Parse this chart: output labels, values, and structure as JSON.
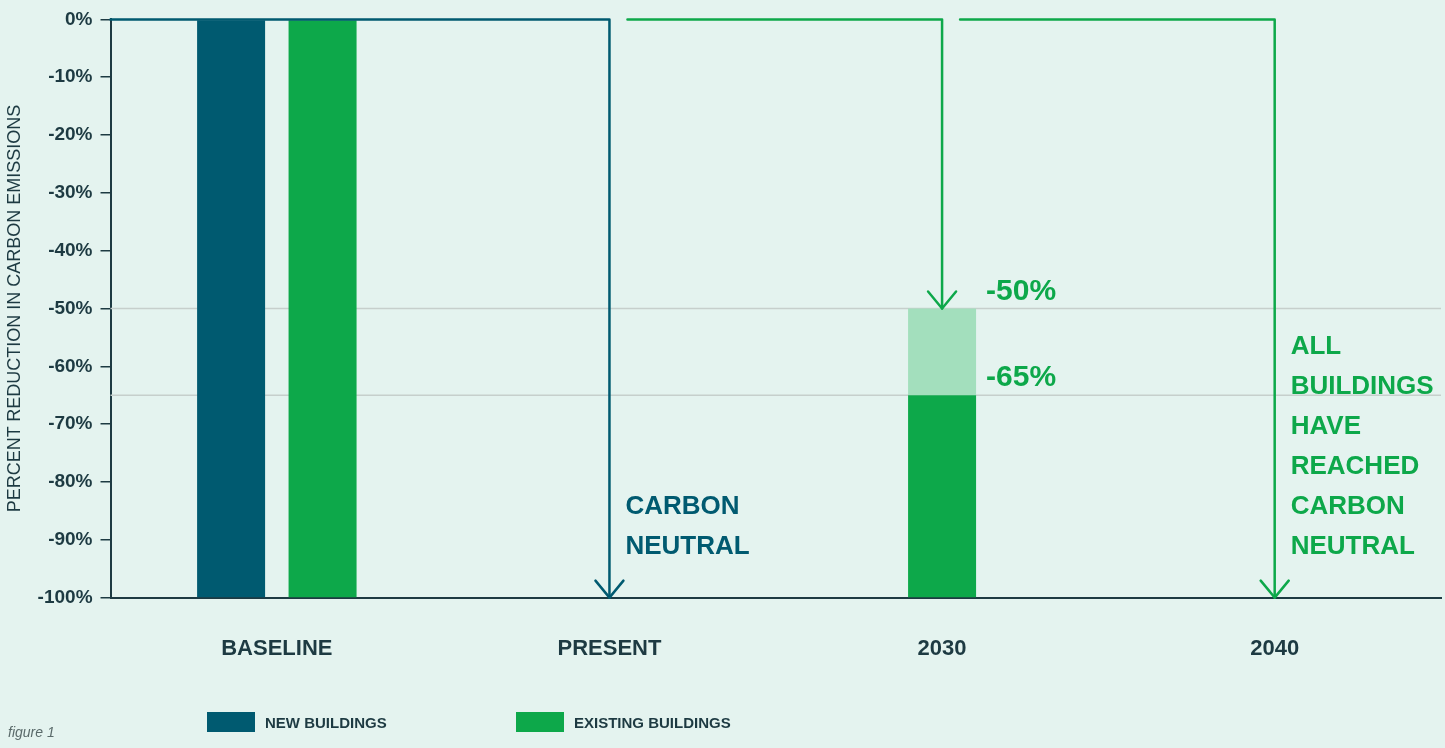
{
  "chart_data": {
    "type": "bar",
    "ylabel": "PERCENT REDUCTION IN CARBON EMISSIONS",
    "categories": [
      "BASELINE",
      "PRESENT",
      "2030",
      "2040"
    ],
    "series": [
      {
        "name": "NEW BUILDINGS",
        "color": "#005a70",
        "values": [
          100,
          null,
          null,
          null
        ],
        "base": [
          -100,
          null,
          null,
          null
        ]
      },
      {
        "name": "EXISTING BUILDINGS",
        "color": "#0da84a",
        "values": [
          100,
          null,
          35,
          null
        ],
        "base": [
          -100,
          null,
          -100,
          null
        ]
      },
      {
        "color": "#a3dfbd",
        "values": [
          null,
          null,
          15,
          null
        ],
        "base": [
          null,
          null,
          -65,
          null
        ]
      }
    ],
    "ylim": [
      -100,
      0
    ],
    "yticks": [
      {
        "value": 0,
        "label": "0%"
      },
      {
        "value": -10,
        "label": "-10%"
      },
      {
        "value": -20,
        "label": "-20%"
      },
      {
        "value": -30,
        "label": "-30%"
      },
      {
        "value": -40,
        "label": "-40%"
      },
      {
        "value": -50,
        "label": "-50%"
      },
      {
        "value": -60,
        "label": "-60%"
      },
      {
        "value": -70,
        "label": "-70%"
      },
      {
        "value": -80,
        "label": "-80%"
      },
      {
        "value": -90,
        "label": "-90%"
      },
      {
        "value": -100,
        "label": "-100%"
      }
    ],
    "ref_lines": [
      {
        "axis": "y",
        "value": -50,
        "color": "#c6cfcc"
      },
      {
        "axis": "y",
        "value": -65,
        "color": "#c6cfcc"
      },
      {
        "axis": "x",
        "value": "PRESENT",
        "label": "CARBON NEUTRAL",
        "color": "#005a70"
      },
      {
        "axis": "x",
        "value": "2030",
        "color": "#0da84a"
      },
      {
        "axis": "x",
        "value": "2040",
        "label": "ALL BUILDINGS HAVE REACHED CARBON NEUTRAL",
        "color": "#0da84a"
      }
    ],
    "annotations": [
      {
        "text": "-50%",
        "x": "2030",
        "y": -50
      },
      {
        "text": "-65%",
        "x": "2030",
        "y": -65
      },
      "figure 1"
    ],
    "grid": false,
    "legend": "bottom"
  }
}
